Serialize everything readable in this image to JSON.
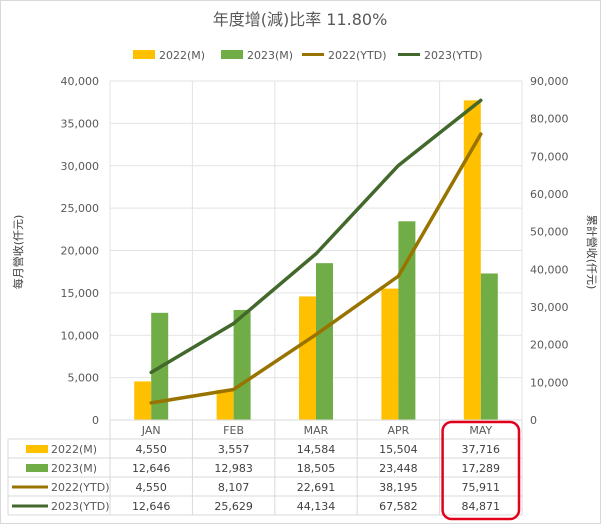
{
  "chart_data": {
    "type": "bar",
    "title": "年度增(減)比率 11.80%",
    "categories": [
      "JAN",
      "FEB",
      "MAR",
      "APR",
      "MAY"
    ],
    "ylabel_left": "每月營收(仟元)",
    "ylabel_right": "累計營收(仟元)",
    "ylim_left": [
      0,
      40000
    ],
    "ylim_right": [
      0,
      90000
    ],
    "yticks_left": [
      "0",
      "5,000",
      "10,000",
      "15,000",
      "20,000",
      "25,000",
      "30,000",
      "35,000",
      "40,000"
    ],
    "yticks_right": [
      "0",
      "10,000",
      "20,000",
      "30,000",
      "40,000",
      "50,000",
      "60,000",
      "70,000",
      "80,000",
      "90,000"
    ],
    "grid": true,
    "legend": "top",
    "highlight_category": "MAY",
    "highlight_color": "#e3001b",
    "series": [
      {
        "name": "2022(M)",
        "kind": "bar",
        "axis": "left",
        "color": "#ffc000",
        "values": [
          4550,
          3557,
          14584,
          15504,
          37716
        ],
        "labels": [
          "4,550",
          "3,557",
          "14,584",
          "15,504",
          "37,716"
        ]
      },
      {
        "name": "2023(M)",
        "kind": "bar",
        "axis": "left",
        "color": "#70ad47",
        "values": [
          12646,
          12983,
          18505,
          23448,
          17289
        ],
        "labels": [
          "12,646",
          "12,983",
          "18,505",
          "23,448",
          "17,289"
        ]
      },
      {
        "name": "2022(YTD)",
        "kind": "line",
        "axis": "right",
        "color": "#997300",
        "values": [
          4550,
          8107,
          22691,
          38195,
          75911
        ],
        "labels": [
          "4,550",
          "8,107",
          "22,691",
          "38,195",
          "75,911"
        ]
      },
      {
        "name": "2023(YTD)",
        "kind": "line",
        "axis": "right",
        "color": "#43682b",
        "values": [
          12646,
          25629,
          44134,
          67582,
          84871
        ],
        "labels": [
          "12,646",
          "25,629",
          "44,134",
          "67,582",
          "84,871"
        ]
      }
    ]
  }
}
